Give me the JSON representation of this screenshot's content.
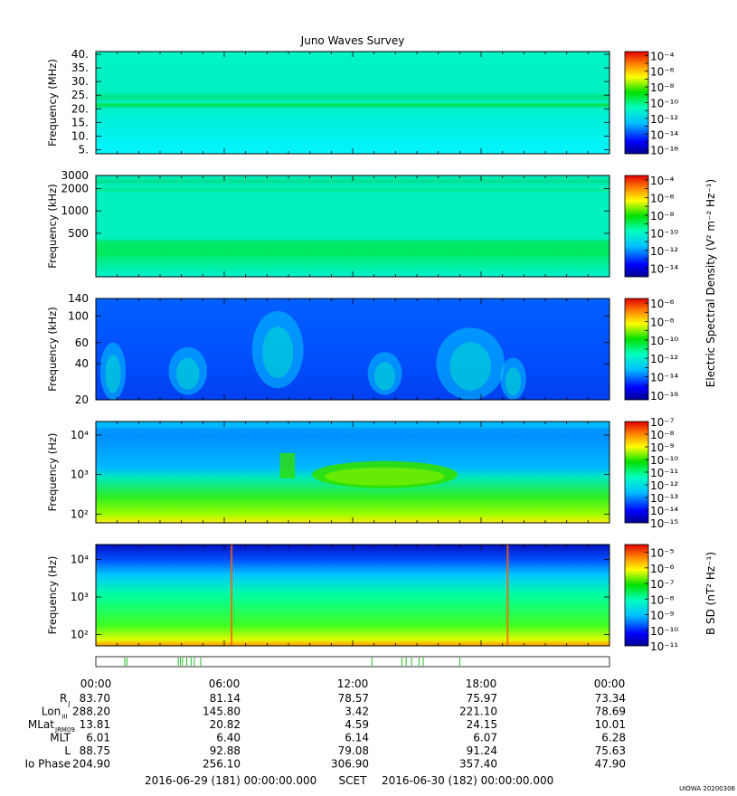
{
  "chart_data": {
    "type": "heatmap",
    "title": "Juno Waves Survey",
    "footer": {
      "start": "2016-06-29 (181) 00:00:00.000",
      "mid": "SCET",
      "end": "2016-06-30 (182) 00:00:00.000",
      "stamp": "UIOWA 20200306"
    },
    "colorbar_labels": {
      "electric": "Electric Spectral Density (V² m⁻² Hz⁻¹)",
      "magnetic": "B SD (nT² Hz⁻¹)"
    },
    "time_ticks": [
      "00:00",
      "06:00",
      "12:00",
      "18:00",
      "00:00"
    ],
    "panels": [
      {
        "ylabel": "Frequency (MHz)",
        "yscale": "linear",
        "ylim": [
          3.5,
          41
        ],
        "ytick_labels": [
          "40.",
          "35.",
          "30.",
          "25.",
          "20.",
          "15.",
          "10.",
          "5."
        ],
        "ytick_values": [
          40,
          35,
          30,
          25,
          20,
          15,
          10,
          5
        ],
        "background": "#00f0c0",
        "features": [
          "narrow band ~21 MHz (green)",
          "slightly cooler band ~5-15 MHz"
        ],
        "colorbar": {
          "exponents": [
            -4,
            -6,
            -8,
            -10,
            -12,
            -14,
            -16
          ],
          "range": [
            -16.5,
            -3.5
          ]
        }
      },
      {
        "ylabel": "Frequency (kHz)",
        "yscale": "log",
        "ylim": [
          130,
          3000
        ],
        "ytick_labels": [
          "3000",
          "2000",
          "1000",
          "500"
        ],
        "ytick_values": [
          3000,
          2000,
          1000,
          500
        ],
        "background": "#00f0c0",
        "features": [
          "band ~1900 kHz",
          "band ~250-350 kHz (green)"
        ],
        "colorbar": {
          "exponents": [
            -4,
            -6,
            -8,
            -10,
            -12,
            -14
          ],
          "range": [
            -15,
            -3.5
          ]
        }
      },
      {
        "ylabel": "Frequency (kHz)",
        "yscale": "log",
        "ylim": [
          20,
          140
        ],
        "ytick_labels": [
          "140",
          "100",
          "60",
          "40",
          "20"
        ],
        "ytick_values": [
          140,
          100,
          60,
          40,
          20
        ],
        "background": "#0055ff",
        "features": [
          "sporadic emission bursts 20-100 kHz"
        ],
        "colorbar": {
          "exponents": [
            -6,
            -8,
            -10,
            -12,
            -14,
            -16
          ],
          "range": [
            -16.5,
            -5.5
          ]
        }
      },
      {
        "ylabel": "Frequency (Hz)",
        "yscale": "log",
        "ylim": [
          60,
          22000
        ],
        "ytick_labels": [
          "10⁴",
          "10³",
          "10²"
        ],
        "ytick_values": [
          10000,
          1000,
          100
        ],
        "background": "#00b8ff",
        "features": [
          "intense emission 500-3000 Hz, 10:00-17:00",
          "enhanced lower band below 1000 Hz"
        ],
        "colorbar": {
          "exponents": [
            -7,
            -8,
            -9,
            -10,
            -11,
            -12,
            -13,
            -14,
            -15
          ],
          "range": [
            -15,
            -7
          ]
        }
      },
      {
        "ylabel": "Frequency (Hz)",
        "yscale": "log",
        "ylim": [
          50,
          25000
        ],
        "ytick_labels": [
          "10⁴",
          "10³",
          "10²"
        ],
        "ytick_values": [
          10000,
          1000,
          100
        ],
        "background": "#00ffd0",
        "features": [
          "vertical spikes near 06:30 and 19:00"
        ],
        "colorbar": {
          "exponents": [
            -5,
            -6,
            -7,
            -8,
            -9,
            -10,
            -11
          ],
          "range": [
            -11,
            -4.5
          ]
        }
      }
    ],
    "ephemeris": {
      "rows": [
        {
          "label": "R",
          "sub": "J",
          "values": [
            "83.70",
            "81.14",
            "78.57",
            "75.97",
            "73.34"
          ]
        },
        {
          "label": "Lon",
          "sub": "III",
          "values": [
            "288.20",
            "145.80",
            "3.42",
            "221.10",
            "78.69"
          ]
        },
        {
          "label": "MLat",
          "sub": "JRM09",
          "values": [
            "13.81",
            "20.82",
            "4.59",
            "24.15",
            "10.01"
          ]
        },
        {
          "label": "MLT",
          "sub": "",
          "values": [
            "6.01",
            "6.40",
            "6.14",
            "6.07",
            "6.28"
          ]
        },
        {
          "label": "L",
          "sub": "",
          "values": [
            "88.75",
            "92.88",
            "79.08",
            "91.24",
            "75.63"
          ]
        },
        {
          "label": "Io Phase",
          "sub": "",
          "values": [
            "204.90",
            "256.10",
            "306.90",
            "357.40",
            "47.90"
          ]
        }
      ]
    },
    "mode_strip_hours": [
      1.35,
      1.45,
      3.85,
      3.95,
      4.05,
      4.25,
      4.45,
      4.6,
      4.9,
      12.9,
      14.3,
      14.5,
      14.75,
      15.1,
      15.3,
      17.0
    ]
  }
}
